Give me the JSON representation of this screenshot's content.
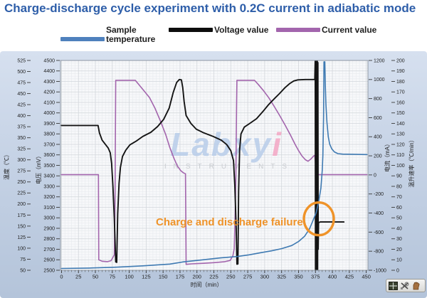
{
  "title": "Charge-discharge cycle experiment with 0.2C current in adiabatic mode",
  "legend": {
    "items": [
      {
        "label": "Sample temperature",
        "color": "#4f81bd"
      },
      {
        "label": "Voltage value",
        "color": "#0d0d0d"
      },
      {
        "label": "Current value",
        "color": "#a365ad"
      }
    ]
  },
  "watermark": {
    "main": "Labxy",
    "accent": "i",
    "sub": "INSTRUMENTS",
    "main_color": "#b7cde9",
    "accent_color": "#f3a6c3",
    "sub_color": "#c9ccd0"
  },
  "annotation": {
    "text": "Charge and discharge failure",
    "color": "#ef9329"
  },
  "toolbar": {
    "buttons": [
      {
        "name": "zoom-box",
        "icon": "crosshair-square-icon"
      },
      {
        "name": "zoom-tool",
        "icon": "magnifier-arrows-icon"
      },
      {
        "name": "pan",
        "icon": "hand-icon"
      }
    ]
  },
  "chart_data": {
    "type": "line",
    "grid": true,
    "legend_position": "top",
    "axes": {
      "x": {
        "label": "时间（min）",
        "min": -1.5,
        "max": 452.5,
        "ticks": [
          0,
          25,
          50,
          75,
          100,
          125,
          150,
          175,
          200,
          225,
          250,
          275,
          300,
          325,
          350,
          375,
          400,
          425,
          450
        ]
      },
      "temperature": {
        "label": "温度（℃）",
        "side": "left-outer",
        "min": 50,
        "max": 525,
        "ticks": [
          50,
          75,
          100,
          125,
          150,
          175,
          200,
          225,
          250,
          275,
          300,
          325,
          350,
          375,
          400,
          425,
          450,
          475,
          500,
          525
        ]
      },
      "voltage": {
        "label": "电压（mV）",
        "side": "left-inner",
        "min": 2500,
        "max": 4500,
        "ticks": [
          2500,
          2600,
          2700,
          2800,
          2900,
          3000,
          3100,
          3200,
          3300,
          3400,
          3500,
          3600,
          3700,
          3800,
          3900,
          4000,
          4100,
          4200,
          4300,
          4400,
          4500
        ]
      },
      "current": {
        "label": "电流（mA）",
        "side": "right-inner",
        "min": -1000,
        "max": 1200,
        "ticks": [
          -1000,
          -800,
          -600,
          -400,
          -200,
          0,
          200,
          400,
          600,
          800,
          1000,
          1200
        ]
      },
      "rate": {
        "label": "温升速率（℃/min）",
        "side": "right-outer",
        "min": 0,
        "max": 200,
        "ticks": [
          0,
          10,
          20,
          30,
          40,
          50,
          60,
          70,
          80,
          90,
          100,
          110,
          120,
          130,
          140,
          150,
          160,
          170,
          180,
          190,
          200
        ]
      }
    },
    "series": [
      {
        "name": "Current value",
        "axis": "current",
        "color": "#a365ad",
        "width": 1.6,
        "points": [
          [
            0,
            2
          ],
          [
            54.5,
            2
          ],
          [
            55,
            -890
          ],
          [
            60,
            -905
          ],
          [
            68,
            -910
          ],
          [
            73,
            -900
          ],
          [
            76,
            -865
          ],
          [
            78,
            -838
          ],
          [
            79,
            -300
          ],
          [
            80,
            992
          ],
          [
            109,
            992
          ],
          [
            115,
            940
          ],
          [
            122,
            880
          ],
          [
            130,
            810
          ],
          [
            138,
            700
          ],
          [
            146,
            565
          ],
          [
            154,
            420
          ],
          [
            160,
            285
          ],
          [
            166,
            175
          ],
          [
            171,
            95
          ],
          [
            176,
            45
          ],
          [
            180,
            22
          ],
          [
            183,
            12
          ],
          [
            183.6,
            -500
          ],
          [
            184,
            -938
          ],
          [
            192,
            -933
          ],
          [
            210,
            -927
          ],
          [
            225,
            -920
          ],
          [
            240,
            -911
          ],
          [
            249,
            -897
          ],
          [
            253,
            -848
          ],
          [
            255,
            -775
          ],
          [
            256.5,
            -400
          ],
          [
            257.5,
            -30
          ],
          [
            258.5,
            715
          ],
          [
            259,
            992
          ],
          [
            285,
            992
          ],
          [
            291,
            945
          ],
          [
            298,
            885
          ],
          [
            306,
            810
          ],
          [
            314,
            720
          ],
          [
            322,
            625
          ],
          [
            330,
            525
          ],
          [
            338,
            420
          ],
          [
            345,
            320
          ],
          [
            350,
            255
          ],
          [
            355,
            200
          ],
          [
            360,
            160
          ],
          [
            364,
            143
          ],
          [
            368,
            165
          ],
          [
            372,
            196
          ],
          [
            374,
            205
          ],
          [
            375,
            120
          ],
          [
            376,
            2
          ],
          [
            451,
            2
          ]
        ]
      },
      {
        "name": "Voltage value",
        "axis": "voltage",
        "color": "#141414",
        "width": 1.9,
        "points": [
          [
            0,
            3880
          ],
          [
            54,
            3880
          ],
          [
            56,
            3810
          ],
          [
            60,
            3740
          ],
          [
            69,
            3665
          ],
          [
            72,
            3620
          ],
          [
            74,
            3520
          ],
          [
            76,
            3300
          ],
          [
            78,
            3000
          ],
          [
            80,
            2580
          ],
          [
            81.5,
            2575
          ],
          [
            83,
            3040
          ],
          [
            85,
            3330
          ],
          [
            87,
            3480
          ],
          [
            90,
            3585
          ],
          [
            95,
            3645
          ],
          [
            101,
            3695
          ],
          [
            110,
            3730
          ],
          [
            120,
            3775
          ],
          [
            132,
            3815
          ],
          [
            142,
            3870
          ],
          [
            151,
            3940
          ],
          [
            159,
            4045
          ],
          [
            165,
            4195
          ],
          [
            170,
            4290
          ],
          [
            174,
            4318
          ],
          [
            177,
            4315
          ],
          [
            179,
            4240
          ],
          [
            181,
            4110
          ],
          [
            184,
            3975
          ],
          [
            191,
            3900
          ],
          [
            199,
            3845
          ],
          [
            210,
            3810
          ],
          [
            224,
            3775
          ],
          [
            236,
            3740
          ],
          [
            244,
            3698
          ],
          [
            250,
            3640
          ],
          [
            254,
            3545
          ],
          [
            256,
            3300
          ],
          [
            258,
            2900
          ],
          [
            259,
            2558
          ],
          [
            260.5,
            2560
          ],
          [
            261.5,
            3250
          ],
          [
            263,
            3650
          ],
          [
            265,
            3800
          ],
          [
            270,
            3865
          ],
          [
            278,
            3900
          ],
          [
            288,
            3945
          ],
          [
            297,
            4010
          ],
          [
            306,
            4080
          ],
          [
            315,
            4140
          ],
          [
            322,
            4185
          ],
          [
            330,
            4240
          ],
          [
            337,
            4280
          ],
          [
            343,
            4305
          ],
          [
            349,
            4315
          ],
          [
            360,
            4318
          ],
          [
            374,
            4318
          ],
          [
            374.6,
            4495
          ],
          [
            375,
            2505
          ],
          [
            375.4,
            4495
          ],
          [
            375.8,
            2505
          ],
          [
            376.2,
            4495
          ],
          [
            376.6,
            2505
          ],
          [
            377,
            4495
          ],
          [
            377.4,
            2505
          ],
          [
            377.8,
            4495
          ],
          [
            378.2,
            2505
          ],
          [
            378.6,
            4480
          ],
          [
            379,
            2700
          ],
          [
            379.6,
            2955
          ],
          [
            382,
            2960
          ],
          [
            417,
            2960
          ]
        ]
      },
      {
        "name": "Sample temperature",
        "axis": "temperature",
        "color": "#3f7ab2",
        "width": 1.6,
        "points": [
          [
            0,
            54
          ],
          [
            40,
            55
          ],
          [
            80,
            57
          ],
          [
            120,
            60
          ],
          [
            160,
            64
          ],
          [
            180,
            69
          ],
          [
            205,
            73
          ],
          [
            235,
            78
          ],
          [
            259,
            81
          ],
          [
            277,
            85
          ],
          [
            295,
            90
          ],
          [
            310,
            94
          ],
          [
            325,
            99
          ],
          [
            340,
            106
          ],
          [
            350,
            115
          ],
          [
            359,
            127
          ],
          [
            366,
            143
          ],
          [
            371,
            161
          ],
          [
            376,
            180
          ],
          [
            380,
            207
          ],
          [
            383,
            236
          ],
          [
            385,
            276
          ],
          [
            386,
            310
          ],
          [
            387,
            400
          ],
          [
            387.6,
            522
          ],
          [
            388.8,
            522
          ],
          [
            389.5,
            470
          ],
          [
            390.5,
            425
          ],
          [
            392,
            385
          ],
          [
            394,
            352
          ],
          [
            396,
            336
          ],
          [
            399,
            325
          ],
          [
            403,
            318
          ],
          [
            408,
            314
          ],
          [
            415,
            313
          ],
          [
            451,
            312
          ]
        ]
      }
    ],
    "failure_annotation_circle": {
      "t": 380,
      "v": 2990,
      "axis": "voltage"
    }
  }
}
